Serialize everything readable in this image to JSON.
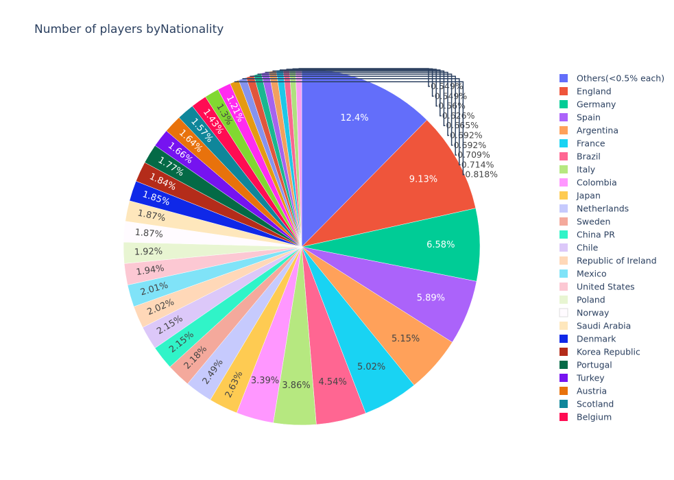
{
  "chart_data": {
    "type": "pie",
    "title": "Number of players byNationality",
    "legend_position": "right",
    "slices": [
      {
        "label": "Others(<0.5% each)",
        "value": 12.4,
        "text": "12.4%",
        "color": "#636efa"
      },
      {
        "label": "England",
        "value": 9.13,
        "text": "9.13%",
        "color": "#EF553B"
      },
      {
        "label": "Germany",
        "value": 6.58,
        "text": "6.58%",
        "color": "#00cc96"
      },
      {
        "label": "Spain",
        "value": 5.89,
        "text": "5.89%",
        "color": "#ab63fa"
      },
      {
        "label": "Argentina",
        "value": 5.15,
        "text": "5.15%",
        "color": "#FFA15A"
      },
      {
        "label": "France",
        "value": 5.02,
        "text": "5.02%",
        "color": "#19d3f3"
      },
      {
        "label": "Brazil",
        "value": 4.54,
        "text": "4.54%",
        "color": "#FF6692"
      },
      {
        "label": "Italy",
        "value": 3.86,
        "text": "3.86%",
        "color": "#B6E880"
      },
      {
        "label": "Colombia",
        "value": 3.39,
        "text": "3.39%",
        "color": "#FF97FF"
      },
      {
        "label": "Japan",
        "value": 2.63,
        "text": "2.63%",
        "color": "#FECB52"
      },
      {
        "label": "Netherlands",
        "value": 2.49,
        "text": "2.49%",
        "color": "#C6CAFD"
      },
      {
        "label": "Sweden",
        "value": 2.18,
        "text": "2.18%",
        "color": "#F4A99C"
      },
      {
        "label": "China PR",
        "value": 2.15,
        "text": "2.15%",
        "color": "#30F4C8"
      },
      {
        "label": "Chile",
        "value": 2.15,
        "text": "2.15%",
        "color": "#DCC8F9"
      },
      {
        "label": "Republic of Ireland",
        "value": 2.02,
        "text": "2.02%",
        "color": "#FFD8B8"
      },
      {
        "label": "Mexico",
        "value": 2.01,
        "text": "2.01%",
        "color": "#80E3F8"
      },
      {
        "label": "United States",
        "value": 1.94,
        "text": "1.94%",
        "color": "#FCC8D3"
      },
      {
        "label": "Poland",
        "value": 1.92,
        "text": "1.92%",
        "color": "#E8F5D2"
      },
      {
        "label": "Norway",
        "value": 1.87,
        "text": "1.87%",
        "color": "#FFFBFF"
      },
      {
        "label": "Saudi Arabia",
        "value": 1.87,
        "text": "1.87%",
        "color": "#FEE7BC"
      },
      {
        "label": "Denmark",
        "value": 1.85,
        "text": "1.85%",
        "color": "#0F28E8"
      },
      {
        "label": "Korea Republic",
        "value": 1.84,
        "text": "1.84%",
        "color": "#B42C1A"
      },
      {
        "label": "Portugal",
        "value": 1.77,
        "text": "1.77%",
        "color": "#046A46"
      },
      {
        "label": "Turkey",
        "value": 1.66,
        "text": "1.66%",
        "color": "#7613F0"
      },
      {
        "label": "Austria",
        "value": 1.64,
        "text": "1.64%",
        "color": "#E8720C"
      },
      {
        "label": "Scotland",
        "value": 1.57,
        "text": "1.57%",
        "color": "#0F869A"
      },
      {
        "label": "Belgium",
        "value": 1.43,
        "text": "1.43%",
        "color": "#FF0C53"
      },
      {
        "label": "",
        "value": 1.3,
        "text": "1.3%",
        "color": "#81D831"
      },
      {
        "label": "",
        "value": 1.21,
        "text": "1.21%",
        "color": "#FF2CF0"
      },
      {
        "label": "",
        "value": 0.818,
        "text": "0.818%",
        "color": "#E59A12"
      },
      {
        "label": "",
        "value": 0.714,
        "text": "0.714%",
        "color": "#8693EE"
      },
      {
        "label": "",
        "value": 0.709,
        "text": "0.709%",
        "color": "#E0563C"
      },
      {
        "label": "",
        "value": 0.692,
        "text": "0.692%",
        "color": "#1AB790"
      },
      {
        "label": "",
        "value": 0.692,
        "text": "0.692%",
        "color": "#A563EE"
      },
      {
        "label": "",
        "value": 0.665,
        "text": "0.665%",
        "color": "#F2A05E"
      },
      {
        "label": "",
        "value": 0.626,
        "text": "0.626%",
        "color": "#1FC7E7"
      },
      {
        "label": "",
        "value": 0.56,
        "text": "0.56%",
        "color": "#F96790"
      },
      {
        "label": "",
        "value": 0.549,
        "text": "0.549%",
        "color": "#B0E17E"
      },
      {
        "label": "",
        "value": 0.549,
        "text": "0.549%",
        "color": "#F99EF2"
      }
    ]
  }
}
